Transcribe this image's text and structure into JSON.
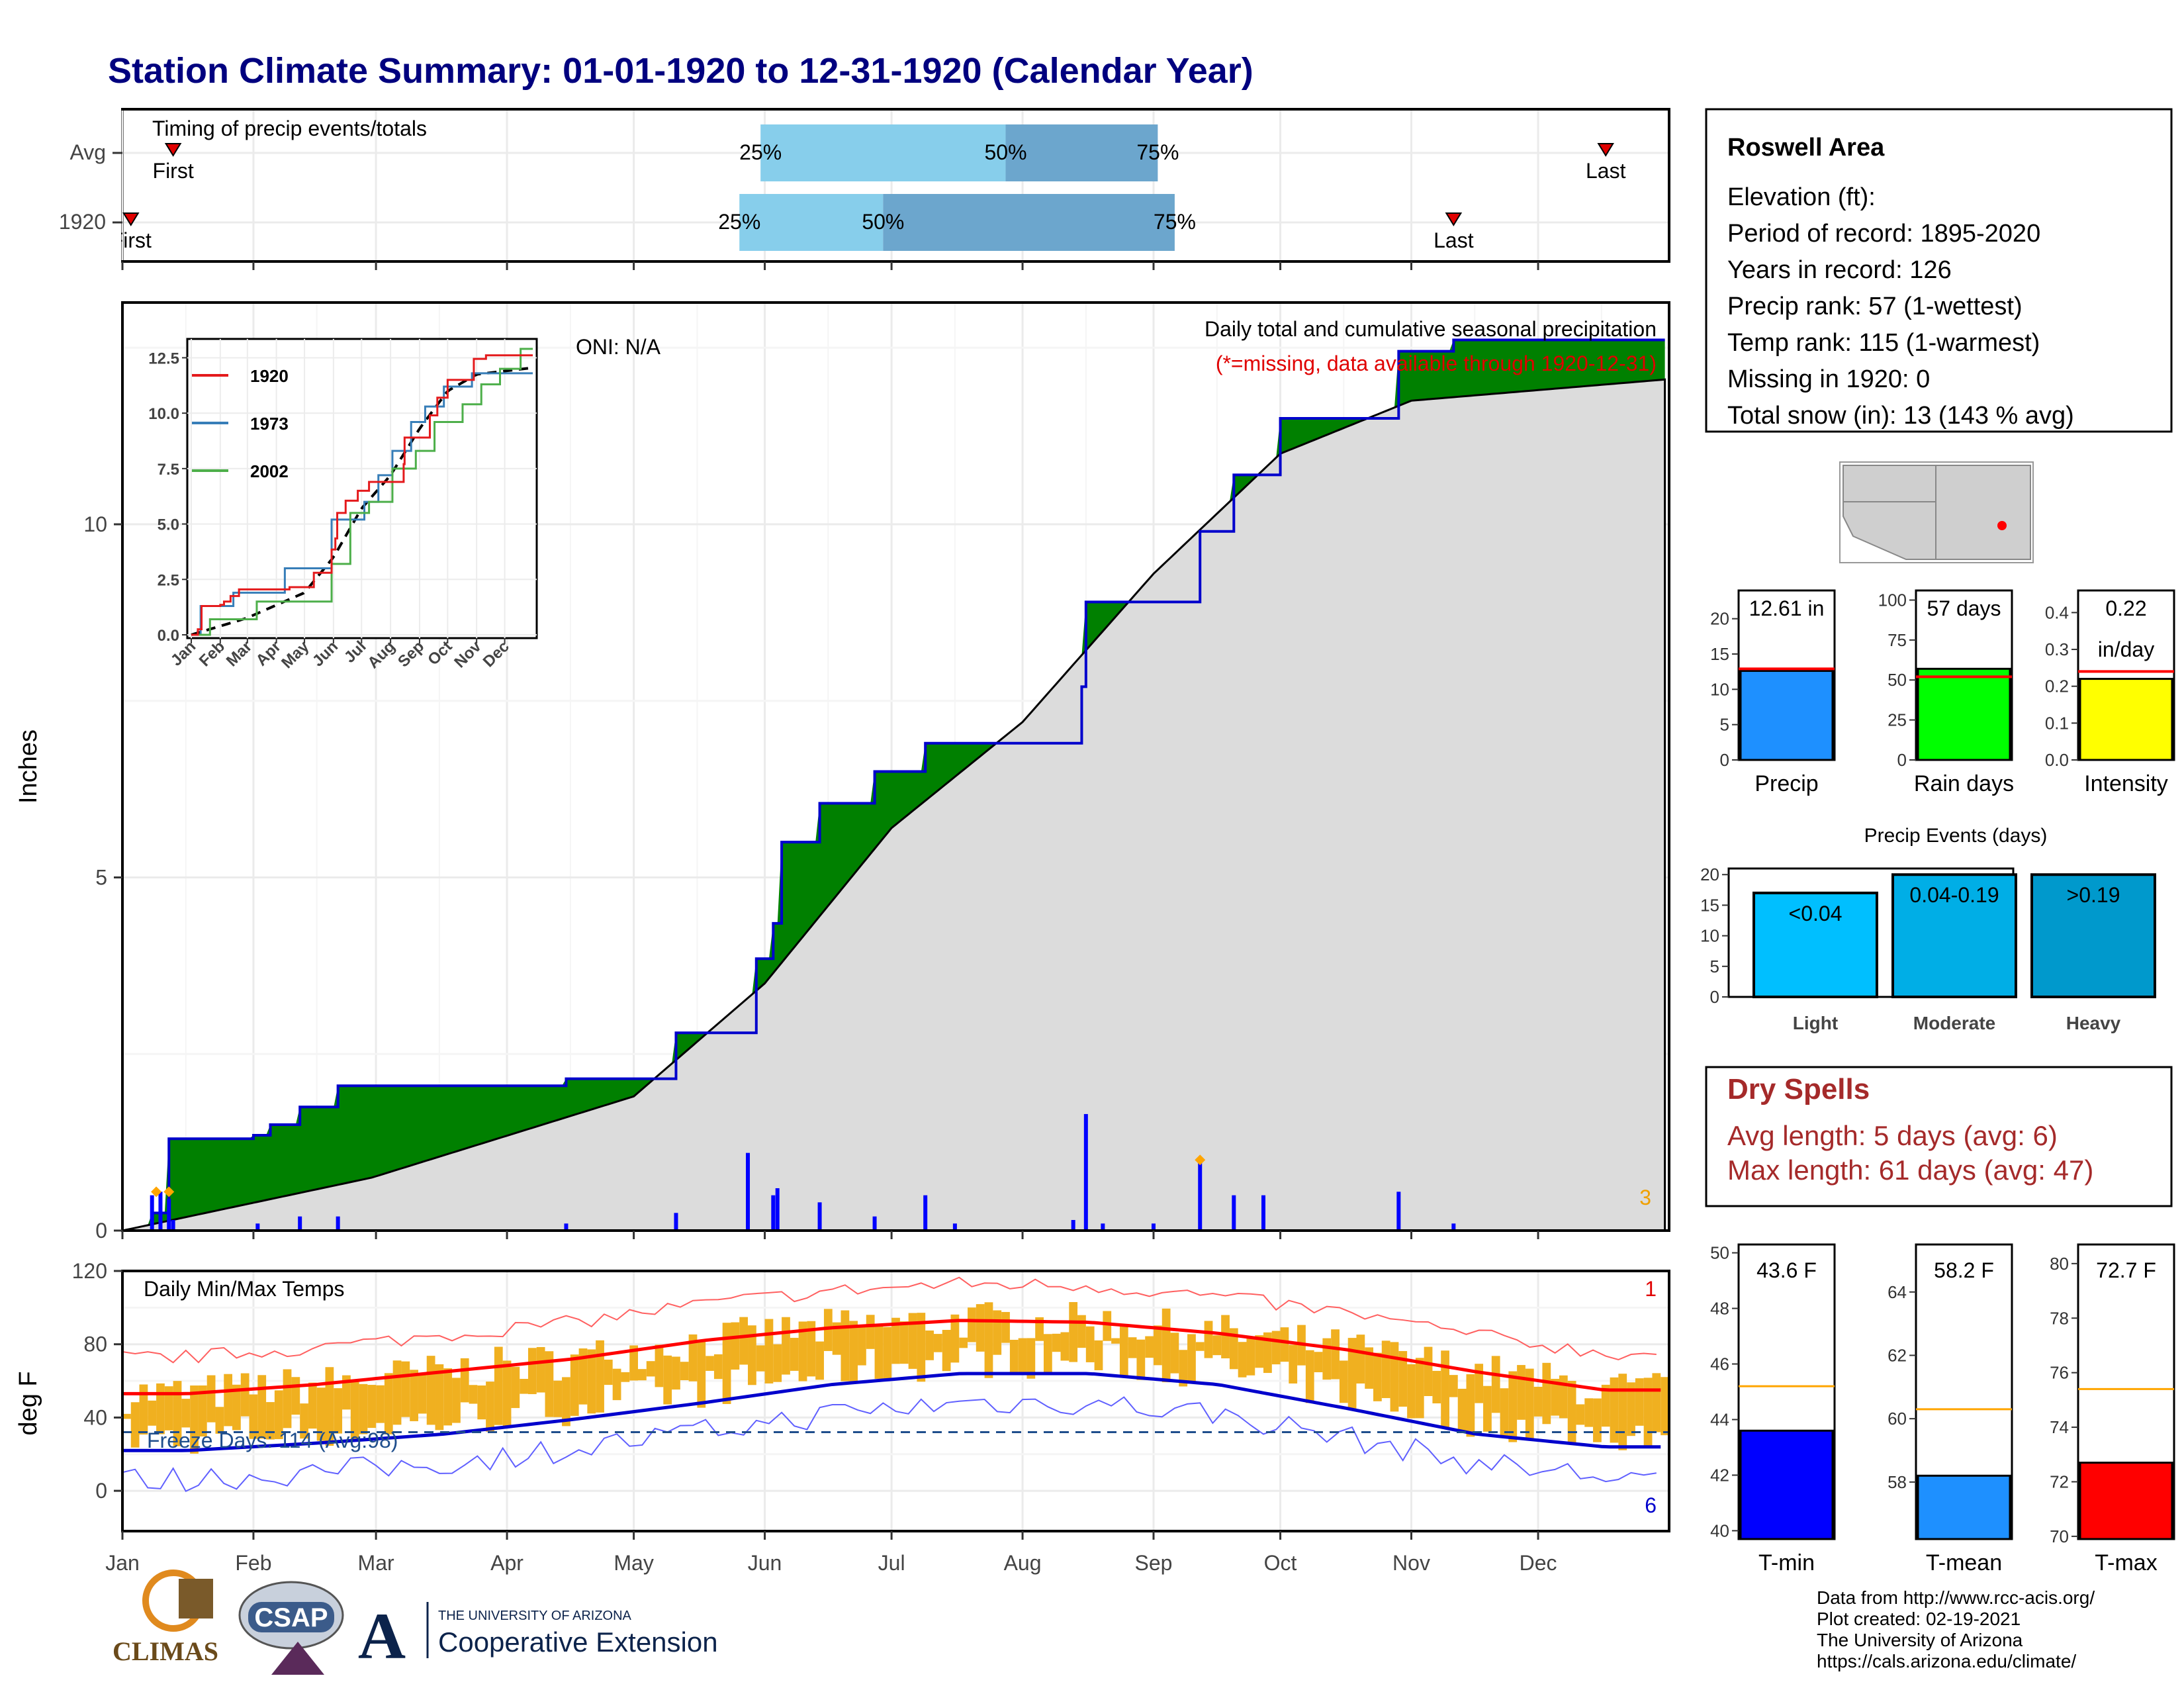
{
  "title": "Station Climate Summary: 01-01-1920 to 12-31-1920 (Calendar Year)",
  "colors": {
    "title": "#00007f",
    "green": "#008000",
    "blue_line": "#0000cc",
    "grey": "#dcdcdc",
    "precip_bar": "#1e90ff",
    "raindays_bar": "#00ff00",
    "intensity_bar": "#ffff00",
    "avg_line": "#ff0000",
    "tmin_bar": "#0000ff",
    "tmean_bar": "#1e90ff",
    "tmax_bar": "#ff0000",
    "temp_range": "#f0b020",
    "dry_spell_text": "#a52a2a",
    "light": "#00bfff",
    "moderate": "#00aee6",
    "heavy": "#0099cc"
  },
  "timing": {
    "title": "Timing of precip events/totals",
    "rows": [
      {
        "label": "Avg",
        "first": "First",
        "last": "Last",
        "first_date": "1920-01-13",
        "last_date": "1920-12-17",
        "q25": "25%",
        "q50": "50%",
        "q75": "75%",
        "q25_date": "1920-05-31",
        "q50_date": "1920-07-28",
        "q75_date": "1920-09-02"
      },
      {
        "label": "1920",
        "first": "First",
        "last": "Last",
        "first_date": "1920-01-03",
        "last_date": "1920-11-11",
        "q25": "25%",
        "q50": "50%",
        "q75": "75%",
        "q25_date": "1920-05-26",
        "q50_date": "1920-06-29",
        "q75_date": "1920-09-06"
      }
    ]
  },
  "main_chart": {
    "ylabel": "Inches",
    "yticks": [
      "0",
      "5",
      "10"
    ],
    "oni": "ONI: N/A",
    "subtitle": "Daily total and cumulative seasonal precipitation",
    "missing_note": "(*=missing, data available through 1920-12-31)",
    "corner_count": "3"
  },
  "months": [
    "Jan",
    "Feb",
    "Mar",
    "Apr",
    "May",
    "Jun",
    "Jul",
    "Aug",
    "Sep",
    "Oct",
    "Nov",
    "Dec"
  ],
  "inset": {
    "yticks": [
      "0.0",
      "2.5",
      "5.0",
      "7.5",
      "10.0",
      "12.5"
    ],
    "legend": [
      {
        "year": "1920",
        "color": "#e41a1c"
      },
      {
        "year": "1973",
        "color": "#377eb8"
      },
      {
        "year": "2002",
        "color": "#4daf4a"
      }
    ]
  },
  "temp_chart": {
    "ylabel": "deg F",
    "title": "Daily Min/Max Temps",
    "yticks": [
      "0",
      "40",
      "80",
      "120"
    ],
    "freeze_text": "Freeze Days: 114 (Avg:98)",
    "count_top": "1",
    "count_bottom": "6"
  },
  "info": {
    "station": "Roswell Area",
    "lines": [
      "Elevation (ft):",
      "Period of record: 1895-2020",
      "Years in record: 126",
      "Precip rank: 57 (1-wettest)",
      "Temp rank: 115 (1-warmest)",
      "Missing in 1920: 0",
      "Total snow (in): 13 (143 % avg)"
    ]
  },
  "mini_bars": [
    {
      "label": "Precip",
      "value_text": "12.61 in",
      "value": 12.61,
      "avg": 12.9,
      "max": 24,
      "yticks": [
        "0",
        "5",
        "10",
        "15",
        "20"
      ],
      "tickvals": [
        0,
        5,
        10,
        15,
        20
      ]
    },
    {
      "label": "Rain days",
      "value_text": "57 days",
      "value": 57,
      "avg": 52,
      "max": 106,
      "yticks": [
        "0",
        "25",
        "50",
        "75",
        "100"
      ],
      "tickvals": [
        0,
        25,
        50,
        75,
        100
      ]
    },
    {
      "label": "Intensity",
      "value_text": "0.22",
      "value_text2": "in/day",
      "value": 0.22,
      "avg": 0.24,
      "max": 0.46,
      "yticks": [
        "0.0",
        "0.1",
        "0.2",
        "0.3",
        "0.4"
      ],
      "tickvals": [
        0,
        0.1,
        0.2,
        0.3,
        0.4
      ]
    }
  ],
  "events": {
    "title": "Precip Events (days)",
    "yticks": [
      "0",
      "5",
      "10",
      "15",
      "20"
    ],
    "bars": [
      {
        "label": "Light",
        "range": "<0.04",
        "value": 17
      },
      {
        "label": "Moderate",
        "range": "0.04-0.19",
        "value": 20
      },
      {
        "label": "Heavy",
        "range": ">0.19",
        "value": 20
      }
    ]
  },
  "dry_spells": {
    "title": "Dry Spells",
    "avg": "Avg length: 5 days (avg: 6)",
    "max": "Max length: 61 days (avg: 47)"
  },
  "temp_bars": [
    {
      "label": "T-min",
      "value_text": "43.6 F",
      "value": 43.6,
      "avg": 45.2,
      "min": 39.7,
      "max": 50.3,
      "yticks": [
        "40",
        "42",
        "44",
        "46",
        "48",
        "50"
      ],
      "tickvals": [
        40,
        42,
        44,
        46,
        48,
        50
      ]
    },
    {
      "label": "T-mean",
      "value_text": "58.2 F",
      "value": 58.2,
      "avg": 60.3,
      "min": 56.2,
      "max": 65.5,
      "yticks": [
        "58",
        "60",
        "62",
        "64"
      ],
      "tickvals": [
        58,
        60,
        62,
        64
      ]
    },
    {
      "label": "T-max",
      "value_text": "72.7 F",
      "value": 72.7,
      "avg": 75.4,
      "min": 69.9,
      "max": 80.7,
      "yticks": [
        "70",
        "72",
        "74",
        "76",
        "78",
        "80"
      ],
      "tickvals": [
        70,
        72,
        74,
        76,
        78,
        80
      ]
    }
  ],
  "footer": {
    "lines": [
      "Data from http://www.rcc-acis.org/",
      "Plot created: 02-19-2021",
      "The University of Arizona",
      "https://cals.arizona.edu/climate/"
    ],
    "climas": "CLIMAS",
    "csap": "CSAP",
    "ua_small": "THE UNIVERSITY OF ARIZONA",
    "ua_big": "Cooperative Extension"
  },
  "chart_data": {
    "type": "area",
    "title": "Daily total and cumulative seasonal precipitation",
    "ylabel": "Inches",
    "ylim": [
      0,
      12.6
    ],
    "cumulative_1920": {
      "x": [
        "1920-01-01",
        "1920-01-08",
        "1920-01-12",
        "1920-02-01",
        "1920-02-05",
        "1920-02-12",
        "1920-02-21",
        "1920-04-15",
        "1920-05-06",
        "1920-05-11",
        "1920-05-30",
        "1920-06-03",
        "1920-06-05",
        "1920-06-14",
        "1920-06-27",
        "1920-07-09",
        "1920-07-16",
        "1920-08-15",
        "1920-08-16",
        "1920-09-12",
        "1920-09-20",
        "1920-10-01",
        "1920-10-29",
        "1920-11-11",
        "1920-12-31"
      ],
      "y": [
        0.0,
        0.25,
        1.3,
        1.35,
        1.5,
        1.75,
        2.05,
        2.15,
        2.15,
        2.8,
        3.85,
        4.35,
        5.5,
        6.05,
        6.5,
        6.9,
        6.9,
        7.7,
        8.9,
        9.9,
        10.7,
        11.5,
        12.45,
        12.61,
        12.61
      ]
    },
    "cumulative_avg": {
      "x": [
        "Jan 1",
        "Mar 1",
        "May 1",
        "Jun 1",
        "Jul 1",
        "Aug 1",
        "Sep 1",
        "Oct 1",
        "Nov 1",
        "Dec 31"
      ],
      "y": [
        0.0,
        0.75,
        1.9,
        3.5,
        5.7,
        7.2,
        9.3,
        11.0,
        11.75,
        12.05
      ]
    },
    "daily_totals": {
      "x": [
        "1920-01-08",
        "1920-01-10",
        "1920-01-12",
        "1920-01-13",
        "1920-02-02",
        "1920-02-12",
        "1920-02-21",
        "1920-04-15",
        "1920-05-11",
        "1920-05-28",
        "1920-06-03",
        "1920-06-04",
        "1920-06-14",
        "1920-06-27",
        "1920-07-09",
        "1920-07-16",
        "1920-08-13",
        "1920-08-16",
        "1920-08-20",
        "1920-09-01",
        "1920-09-12",
        "1920-09-20",
        "1920-09-27",
        "1920-10-29",
        "1920-11-11"
      ],
      "y": [
        0.5,
        0.55,
        0.45,
        0.15,
        0.1,
        0.2,
        0.2,
        0.1,
        0.25,
        1.1,
        0.5,
        0.6,
        0.4,
        0.2,
        0.5,
        0.1,
        0.15,
        1.65,
        0.1,
        0.1,
        1.0,
        0.5,
        0.5,
        0.55,
        0.1
      ]
    },
    "temps": {
      "ylabel": "deg F",
      "ylim": [
        -20,
        120
      ],
      "normal_max": {
        "x": [
          "Jan",
          "Feb",
          "Mar",
          "Apr",
          "May",
          "Jun",
          "Jul",
          "Aug",
          "Sep",
          "Oct",
          "Nov",
          "Dec"
        ],
        "y": [
          53,
          58,
          65,
          72,
          82,
          89,
          93,
          92,
          86,
          77,
          65,
          55
        ]
      },
      "normal_min": {
        "x": [
          "Jan",
          "Feb",
          "Mar",
          "Apr",
          "May",
          "Jun",
          "Jul",
          "Aug",
          "Sep",
          "Oct",
          "Nov",
          "Dec"
        ],
        "y": [
          22,
          26,
          31,
          39,
          48,
          58,
          64,
          64,
          58,
          45,
          31,
          24
        ]
      },
      "freeze_line": 32
    }
  }
}
